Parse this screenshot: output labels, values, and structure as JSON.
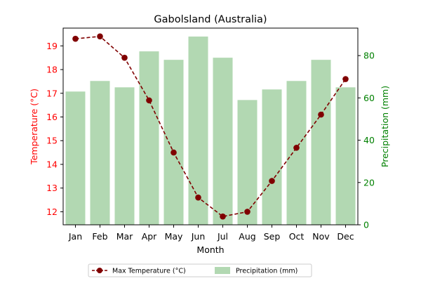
{
  "chart_data": {
    "type": "bar+line",
    "title": "Gabolsland (Australia)",
    "xlabel": "Month",
    "categories": [
      "Jan",
      "Feb",
      "Mar",
      "Apr",
      "May",
      "Jun",
      "Jul",
      "Aug",
      "Sep",
      "Oct",
      "Nov",
      "Dec"
    ],
    "left_axis": {
      "label": "Temperature (°C)",
      "color": "#ff0000",
      "ylim": [
        11.45,
        19.75
      ],
      "ticks": [
        12,
        13,
        14,
        15,
        16,
        17,
        18,
        19
      ]
    },
    "right_axis": {
      "label": "Precipitation (mm)",
      "color": "#008000",
      "ylim": [
        0,
        93
      ],
      "ticks": [
        0,
        20,
        40,
        60,
        80
      ]
    },
    "series": [
      {
        "name": "Max Temperature (°C)",
        "type": "line",
        "axis": "left",
        "style": "dashed",
        "marker": "circle",
        "color": "#800000",
        "values": [
          19.3,
          19.4,
          18.5,
          16.7,
          14.5,
          12.6,
          11.8,
          12.0,
          13.3,
          14.7,
          16.1,
          17.6
        ]
      },
      {
        "name": "Precipitation (mm)",
        "type": "bar",
        "axis": "right",
        "color": "#b2d8b2",
        "values": [
          63,
          68,
          65,
          82,
          78,
          89,
          79,
          59,
          64,
          68,
          78,
          65
        ]
      }
    ],
    "legend": {
      "position": "bottom-center"
    },
    "grid": false
  }
}
